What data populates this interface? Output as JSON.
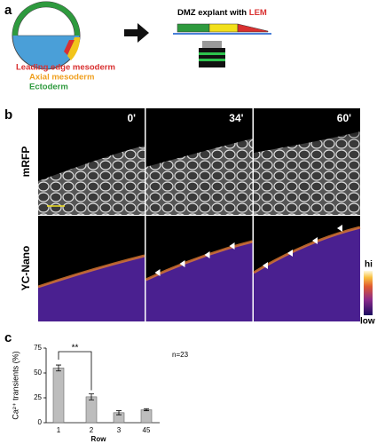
{
  "panel_a": {
    "label": "a",
    "legend": [
      "Leading edge mesoderm",
      "Axial mesoderm",
      "Ectoderm"
    ],
    "explant_title": "DMZ explant with",
    "explant_highlight": "LEM"
  },
  "panel_b": {
    "label": "b",
    "rows": [
      "mRFP",
      "YC-Nano"
    ],
    "times": [
      "0'",
      "34'",
      "60'"
    ],
    "colorbar": {
      "high": "hi",
      "low": "low"
    }
  },
  "panel_c": {
    "label": "c"
  },
  "chart_data": {
    "type": "bar",
    "categories": [
      "1",
      "2",
      "3",
      "45"
    ],
    "values": [
      55,
      26,
      10,
      13
    ],
    "errors": [
      3,
      3,
      2,
      1
    ],
    "color": "#bdbdbd",
    "ylim": [
      0,
      75
    ],
    "yticks": [
      0,
      25,
      50,
      75
    ],
    "ylabel": "Ca²⁺ transients (%)",
    "xlabel": "Row",
    "annotations": [
      "**",
      "n=23"
    ]
  }
}
